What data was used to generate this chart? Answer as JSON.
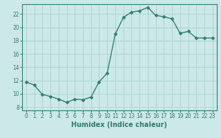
{
  "x": [
    0,
    1,
    2,
    3,
    4,
    5,
    6,
    7,
    8,
    9,
    10,
    11,
    12,
    13,
    14,
    15,
    16,
    17,
    18,
    19,
    20,
    21,
    22,
    23
  ],
  "y": [
    11.8,
    11.3,
    9.9,
    9.6,
    9.2,
    8.7,
    9.2,
    9.1,
    9.5,
    11.8,
    13.1,
    19.0,
    21.5,
    22.3,
    22.5,
    23.0,
    21.8,
    21.6,
    21.3,
    19.1,
    19.4,
    18.4,
    18.4,
    18.4
  ],
  "xlabel": "Humidex (Indice chaleur)",
  "xlim": [
    -0.5,
    23.5
  ],
  "ylim": [
    7.5,
    23.5
  ],
  "yticks": [
    8,
    10,
    12,
    14,
    16,
    18,
    20,
    22
  ],
  "xticks": [
    0,
    1,
    2,
    3,
    4,
    5,
    6,
    7,
    8,
    9,
    10,
    11,
    12,
    13,
    14,
    15,
    16,
    17,
    18,
    19,
    20,
    21,
    22,
    23
  ],
  "line_color": "#2d7d6e",
  "marker_color": "#2d7d6e",
  "bg_color": "#cce8e8",
  "grid_color": "#aad4d4",
  "axis_color": "#2d7d6e",
  "tick_label_fontsize": 5.5,
  "xlabel_fontsize": 7.0,
  "marker_size": 2.5,
  "line_width": 1.0
}
